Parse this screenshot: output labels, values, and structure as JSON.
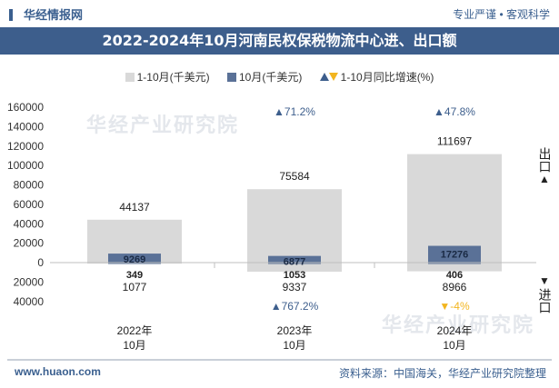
{
  "header": {
    "logo_text": "华经情报网",
    "slogan": "专业严谨 • 客观科学"
  },
  "watermark": {
    "brand": "华经产业研究院"
  },
  "chart_data": {
    "type": "bar",
    "title": "2022-2024年10月河南民权保税物流中心进、出口额",
    "categories": [
      "2022年\n10月",
      "2023年\n10月",
      "2024年\n10月"
    ],
    "category_lines": [
      [
        "2022年",
        "10月"
      ],
      [
        "2023年",
        "10月"
      ],
      [
        "2024年",
        "10月"
      ]
    ],
    "legend": [
      "1-10月(千美元)",
      "10月(千美元)",
      "1-10月同比增速(%)"
    ],
    "ylim": [
      -40000,
      160000
    ],
    "yticks": [
      160000,
      140000,
      120000,
      100000,
      80000,
      60000,
      40000,
      20000,
      0,
      -20000,
      -40000
    ],
    "ytick_labels": [
      "160000",
      "140000",
      "120000",
      "100000",
      "80000",
      "60000",
      "40000",
      "20000",
      "0",
      "20000",
      "40000"
    ],
    "export": {
      "ytd": [
        44137,
        75584,
        111697
      ],
      "month": [
        9269,
        6877,
        17276
      ],
      "ytd_growth": [
        "",
        "▲71.2%",
        "▲47.8%"
      ]
    },
    "import": {
      "ytd": [
        1077,
        9337,
        8966
      ],
      "month": [
        349,
        1053,
        406
      ],
      "ytd_growth": [
        "",
        "▲767.2%",
        "▼-4%"
      ]
    },
    "side_labels": {
      "export": "出口",
      "import": "进口",
      "export_arrow": "▲",
      "import_arrow": "▼"
    },
    "colors": {
      "ytd": "#d9d9d9",
      "month": "#5a7197",
      "up": "#3d5e8c",
      "down": "#f2b51f",
      "axis": "#bfbfbf"
    }
  },
  "footer": {
    "url": "www.huaon.com",
    "source": "资料来源：中国海关，华经产业研究院整理"
  }
}
